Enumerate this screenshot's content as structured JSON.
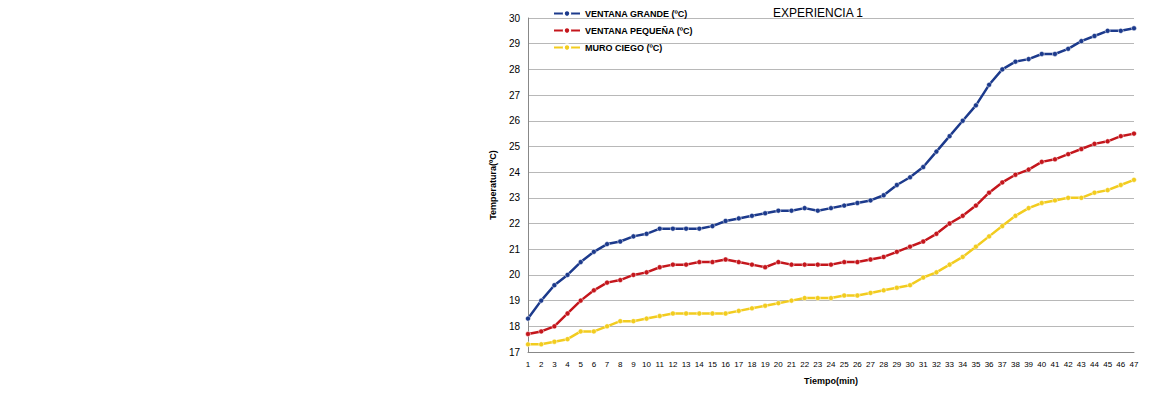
{
  "chart_data": {
    "type": "line",
    "title": "EXPERIENCIA 1",
    "x_label": "Tiempo(min)",
    "y_label": "Temperatura(ºC)",
    "categories": [
      1,
      2,
      3,
      4,
      5,
      6,
      7,
      8,
      9,
      10,
      11,
      12,
      13,
      14,
      15,
      16,
      17,
      18,
      19,
      20,
      21,
      22,
      23,
      24,
      25,
      26,
      27,
      28,
      29,
      30,
      31,
      32,
      33,
      34,
      35,
      36,
      37,
      38,
      39,
      40,
      41,
      42,
      43,
      44,
      45,
      46,
      47
    ],
    "series": [
      {
        "name": "VENTANA GRANDE (ºC)",
        "color": "#1c3a8c",
        "marker": "circle",
        "values": [
          18.3,
          19.0,
          19.6,
          20.0,
          20.5,
          20.9,
          21.2,
          21.3,
          21.5,
          21.6,
          21.8,
          21.8,
          21.8,
          21.8,
          21.9,
          22.1,
          22.2,
          22.3,
          22.4,
          22.5,
          22.5,
          22.6,
          22.5,
          22.6,
          22.7,
          22.8,
          22.9,
          23.1,
          23.5,
          23.8,
          24.2,
          24.8,
          25.4,
          26.0,
          26.6,
          27.4,
          28.0,
          28.3,
          28.4,
          28.6,
          28.6,
          28.8,
          29.1,
          29.3,
          29.5,
          29.5,
          29.6
        ]
      },
      {
        "name": "VENTANA PEQUEÑA (ºC)",
        "color": "#c4161c",
        "marker": "circle",
        "values": [
          17.7,
          17.8,
          18.0,
          18.5,
          19.0,
          19.4,
          19.7,
          19.8,
          20.0,
          20.1,
          20.3,
          20.4,
          20.4,
          20.5,
          20.5,
          20.6,
          20.5,
          20.4,
          20.3,
          20.5,
          20.4,
          20.4,
          20.4,
          20.4,
          20.5,
          20.5,
          20.6,
          20.7,
          20.9,
          21.1,
          21.3,
          21.6,
          22.0,
          22.3,
          22.7,
          23.2,
          23.6,
          23.9,
          24.1,
          24.4,
          24.5,
          24.7,
          24.9,
          25.1,
          25.2,
          25.4,
          25.5
        ]
      },
      {
        "name": "MURO CIEGO (ºC)",
        "color": "#f2cc1f",
        "marker": "circle",
        "values": [
          17.3,
          17.3,
          17.4,
          17.5,
          17.8,
          17.8,
          18.0,
          18.2,
          18.2,
          18.3,
          18.4,
          18.5,
          18.5,
          18.5,
          18.5,
          18.5,
          18.6,
          18.7,
          18.8,
          18.9,
          19.0,
          19.1,
          19.1,
          19.1,
          19.2,
          19.2,
          19.3,
          19.4,
          19.5,
          19.6,
          19.9,
          20.1,
          20.4,
          20.7,
          21.1,
          21.5,
          21.9,
          22.3,
          22.6,
          22.8,
          22.9,
          23.0,
          23.0,
          23.2,
          23.3,
          23.5,
          23.7
        ]
      }
    ],
    "ylim": [
      17,
      30
    ],
    "yticks": [
      17,
      18,
      19,
      20,
      21,
      22,
      23,
      24,
      25,
      26,
      27,
      28,
      29,
      30
    ],
    "grid": true,
    "legend": "upper left"
  }
}
